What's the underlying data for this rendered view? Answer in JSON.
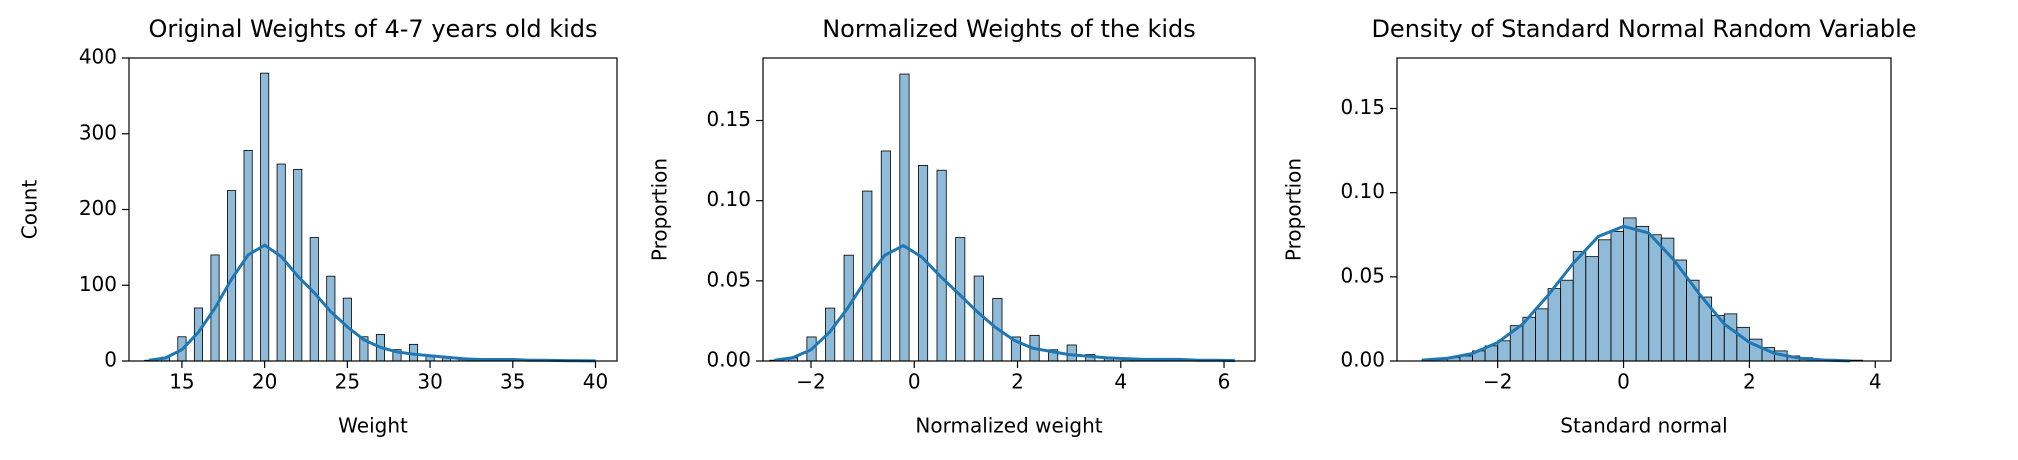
{
  "chart_data": [
    {
      "type": "histogram",
      "title": "Original Weights of 4-7 years old kids",
      "xlabel": "Weight",
      "ylabel": "Count",
      "color": "#1f77b4",
      "bins": [
        12.75,
        13.25,
        13.75,
        14.25,
        14.75,
        15.25,
        15.75,
        16.25,
        16.75,
        17.25,
        17.75,
        18.25,
        18.75,
        19.25,
        19.75,
        20.25,
        20.75,
        21.25,
        21.75,
        22.25,
        22.75,
        23.25,
        23.75,
        24.25,
        24.75,
        25.25,
        25.75,
        26.25,
        26.75,
        27.25,
        27.75,
        28.25,
        28.75,
        29.25,
        29.75,
        30.25,
        30.75,
        31.25,
        31.75,
        32.25,
        32.75,
        33.25,
        33.75,
        34.25,
        34.75,
        35.25,
        35.75,
        36.25,
        36.75,
        37.25,
        37.75
      ],
      "values": [
        1,
        0,
        5,
        0,
        32,
        0,
        70,
        0,
        140,
        0,
        225,
        0,
        278,
        0,
        380,
        0,
        260,
        0,
        253,
        0,
        163,
        0,
        112,
        0,
        83,
        0,
        32,
        0,
        35,
        0,
        15,
        0,
        22,
        0,
        8,
        0,
        5,
        0,
        3,
        0,
        2,
        0,
        1,
        0,
        2,
        0,
        1,
        0,
        0,
        0
      ],
      "kde": {
        "x": [
          13,
          14,
          15,
          16,
          17,
          18,
          19,
          20,
          21,
          22,
          23,
          24,
          25,
          26,
          27,
          28,
          29,
          30,
          31,
          32,
          33,
          34,
          35,
          36,
          37,
          38,
          39,
          40
        ],
        "y": [
          1,
          4,
          15,
          38,
          70,
          108,
          140,
          153,
          138,
          112,
          90,
          65,
          45,
          28,
          18,
          12,
          9,
          7,
          5,
          3,
          2,
          2,
          2,
          1,
          1,
          0.5,
          0.3,
          0.2
        ]
      },
      "xlim": [
        11.8,
        41.3
      ],
      "ylim": [
        0,
        400
      ],
      "xticks": [
        15,
        20,
        25,
        30,
        35,
        40
      ],
      "yticks": [
        0,
        100,
        200,
        300,
        400
      ]
    },
    {
      "type": "histogram",
      "title": "Normalized Weights of the kids",
      "xlabel": "Normalized weight",
      "ylabel": "Proportion",
      "color": "#1f77b4",
      "bins": [
        -2.8,
        -2.62,
        -2.44,
        -2.26,
        -2.08,
        -1.9,
        -1.72,
        -1.54,
        -1.36,
        -1.18,
        -1.0,
        -0.82,
        -0.64,
        -0.46,
        -0.28,
        -0.1,
        0.08,
        0.26,
        0.44,
        0.62,
        0.8,
        0.98,
        1.16,
        1.34,
        1.52,
        1.7,
        1.88,
        2.06,
        2.24,
        2.42,
        2.6,
        2.78,
        2.96,
        3.14,
        3.32,
        3.5,
        3.68,
        3.86,
        4.04,
        4.22,
        4.4,
        4.58,
        4.76,
        4.94,
        5.12,
        5.3,
        5.48,
        5.66,
        5.84,
        6.02,
        6.2
      ],
      "values": [
        0.0005,
        0,
        0.002,
        0,
        0.015,
        0,
        0.033,
        0,
        0.066,
        0,
        0.106,
        0,
        0.131,
        0,
        0.179,
        0,
        0.122,
        0,
        0.119,
        0,
        0.077,
        0,
        0.053,
        0,
        0.039,
        0,
        0.015,
        0,
        0.016,
        0,
        0.007,
        0,
        0.01,
        0,
        0.004,
        0,
        0.002,
        0,
        0.001,
        0,
        0.001,
        0,
        0.0005,
        0,
        0.001,
        0,
        0.0005,
        0,
        0,
        0
      ],
      "kde": {
        "x": [
          -2.71,
          -2.36,
          -2.0,
          -1.64,
          -1.29,
          -0.93,
          -0.57,
          -0.21,
          0.14,
          0.5,
          0.86,
          1.21,
          1.57,
          1.93,
          2.29,
          2.64,
          3.0,
          3.36,
          3.71,
          4.07,
          4.43,
          4.79,
          5.14,
          5.5,
          5.86,
          6.21
        ],
        "y": [
          0.0005,
          0.002,
          0.007,
          0.018,
          0.033,
          0.051,
          0.066,
          0.072,
          0.065,
          0.053,
          0.042,
          0.031,
          0.021,
          0.013,
          0.008,
          0.006,
          0.004,
          0.003,
          0.002,
          0.0015,
          0.001,
          0.001,
          0.001,
          0.0005,
          0.0005,
          0.0002
        ]
      },
      "xlim": [
        -2.93,
        6.6
      ],
      "ylim": [
        0,
        0.189
      ],
      "xticks": [
        {
          "value": -2,
          "label": "−2"
        },
        0,
        2,
        4,
        6
      ],
      "yticks": [
        {
          "value": 0,
          "label": "0.00"
        },
        {
          "value": 0.05,
          "label": "0.05"
        },
        {
          "value": 0.1,
          "label": "0.10"
        },
        {
          "value": 0.15,
          "label": "0.15"
        }
      ]
    },
    {
      "type": "histogram",
      "title": "Density of Standard Normal Random Variable",
      "xlabel": "Standard normal",
      "ylabel": "Proportion",
      "color": "#1f77b4",
      "bins": [
        -3.2,
        -3.0,
        -2.8,
        -2.6,
        -2.4,
        -2.2,
        -2.0,
        -1.8,
        -1.6,
        -1.4,
        -1.2,
        -1.0,
        -0.8,
        -0.6,
        -0.4,
        -0.2,
        0,
        0.2,
        0.4,
        0.6,
        0.8,
        1.0,
        1.2,
        1.4,
        1.6,
        1.8,
        2.0,
        2.2,
        2.4,
        2.6,
        2.8,
        3.0,
        3.2,
        3.4,
        3.6,
        3.8
      ],
      "values": [
        0.001,
        0.001,
        0.002,
        0.003,
        0.006,
        0.009,
        0.012,
        0.021,
        0.026,
        0.031,
        0.043,
        0.048,
        0.065,
        0.062,
        0.072,
        0.077,
        0.085,
        0.08,
        0.075,
        0.073,
        0.06,
        0.048,
        0.038,
        0.027,
        0.028,
        0.02,
        0.013,
        0.008,
        0.006,
        0.003,
        0.002,
        0.001,
        0.001,
        0.0005,
        0.0005
      ],
      "kde": {
        "x": [
          -3.2,
          -2.8,
          -2.4,
          -2.0,
          -1.6,
          -1.2,
          -0.8,
          -0.4,
          0,
          0.4,
          0.8,
          1.2,
          1.6,
          2.0,
          2.4,
          2.8,
          3.2,
          3.6
        ],
        "y": [
          0.0005,
          0.0016,
          0.0045,
          0.011,
          0.022,
          0.039,
          0.058,
          0.074,
          0.08,
          0.076,
          0.06,
          0.04,
          0.022,
          0.011,
          0.0045,
          0.0016,
          0.0005,
          0.0001
        ]
      },
      "xlim": [
        -3.6,
        4.25
      ],
      "ylim": [
        0,
        0.18
      ],
      "xticks": [
        {
          "value": -2,
          "label": "−2"
        },
        0,
        2,
        4
      ],
      "yticks": [
        {
          "value": 0,
          "label": "0.00"
        },
        {
          "value": 0.05,
          "label": "0.05"
        },
        {
          "value": 0.1,
          "label": "0.10"
        },
        {
          "value": 0.15,
          "label": "0.15"
        }
      ]
    }
  ]
}
